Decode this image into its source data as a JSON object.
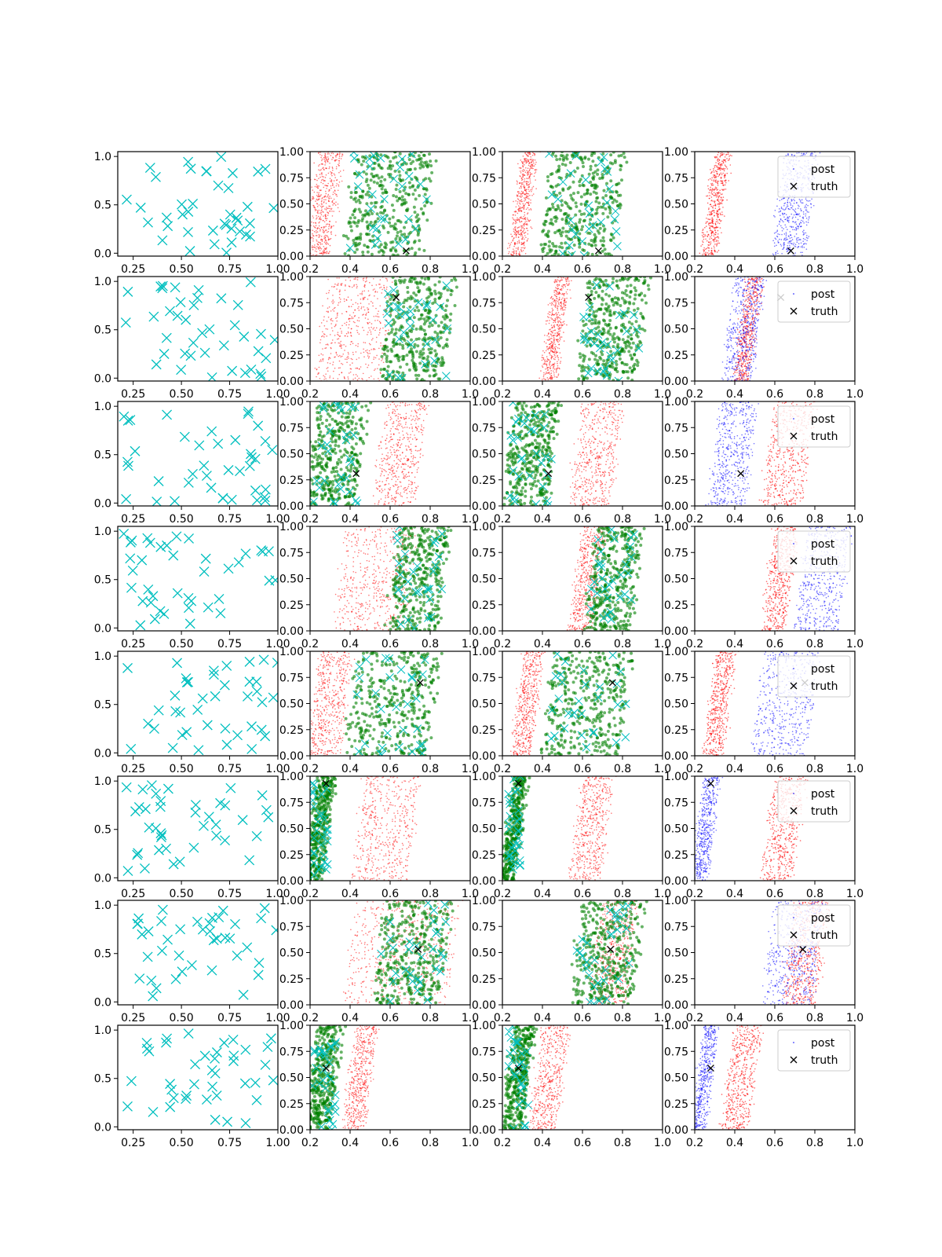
{
  "figure": {
    "rows": 8,
    "cols": 4
  },
  "colors": {
    "design": "#00BFBF",
    "green": "#008000",
    "red": "#FF0000",
    "blue": "#0000FF",
    "truth": "#000000"
  },
  "legend": {
    "post_label": "post",
    "truth_label": "truth"
  },
  "chart_data": [
    {
      "panel": "design-points",
      "type": "scatter",
      "marker": "x",
      "xlim": [
        0.17,
        1.0
      ],
      "ylim": [
        -0.03,
        1.05
      ],
      "xticks": [
        "0.25",
        "0.50",
        "0.75",
        "1.00"
      ],
      "yticks": [
        "0.0",
        "0.5",
        "1.0"
      ]
    },
    {
      "panel": "prior-samples-with-design",
      "type": "scatter",
      "series_colors": [
        "red",
        "green",
        "design"
      ],
      "xlim": [
        0.2,
        1.0
      ],
      "ylim": [
        0.0,
        1.0
      ],
      "xticks": [
        "0.2",
        "0.4",
        "0.6",
        "0.8",
        "1.0"
      ],
      "yticks": [
        "0.00",
        "0.25",
        "0.50",
        "0.75",
        "1.00"
      ]
    },
    {
      "panel": "samples-with-design",
      "type": "scatter",
      "series_colors": [
        "red",
        "green",
        "design"
      ],
      "xlim": [
        0.2,
        1.0
      ],
      "ylim": [
        0.0,
        1.0
      ],
      "xticks": [
        "0.2",
        "0.4",
        "0.6",
        "0.8",
        "1.0"
      ],
      "yticks": [
        "0.00",
        "0.25",
        "0.50",
        "0.75",
        "1.00"
      ]
    },
    {
      "panel": "posterior",
      "type": "scatter",
      "series": [
        {
          "name": "post"
        },
        {
          "name": "truth"
        }
      ],
      "legend_position": "top-right",
      "xlim": [
        0.2,
        1.0
      ],
      "ylim": [
        0.0,
        1.0
      ],
      "xticks": [
        "0.2",
        "0.4",
        "0.6",
        "0.8",
        "1.0"
      ],
      "yticks": [
        "0.00",
        "0.25",
        "0.50",
        "0.75",
        "1.00"
      ]
    }
  ],
  "row_data": [
    {
      "truth": [
        0.68,
        0.05
      ],
      "red_band": [
        0.21,
        0.33
      ],
      "green_band": [
        0.4,
        0.79
      ],
      "blue_band": [
        0.62,
        0.78
      ],
      "red_post_band": [
        0.27,
        0.34
      ],
      "blue_is_right": true,
      "legend": true
    },
    {
      "truth": [
        0.63,
        0.8
      ],
      "red_band": [
        0.26,
        0.59
      ],
      "green_band": [
        0.58,
        0.9
      ],
      "blue_band": [
        0.37,
        0.52
      ],
      "red_post_band": [
        0.43,
        0.5
      ],
      "blue_is_right": false,
      "legend": true
    },
    {
      "truth": [
        0.43,
        0.31
      ],
      "red_band": [
        0.55,
        0.75
      ],
      "green_band": [
        0.21,
        0.46
      ],
      "blue_band": [
        0.3,
        0.48
      ],
      "red_post_band": [
        0.57,
        0.77
      ],
      "blue_is_right": false,
      "legend": true
    },
    {
      "truth": null,
      "red_band": [
        0.35,
        0.7
      ],
      "green_band": [
        0.62,
        0.87
      ],
      "blue_band": [
        0.73,
        0.95
      ],
      "red_post_band": [
        0.57,
        0.68
      ],
      "blue_is_right": true,
      "legend": true
    },
    {
      "truth": [
        0.75,
        0.7
      ],
      "red_band": [
        0.22,
        0.38
      ],
      "green_band": [
        0.4,
        0.82
      ],
      "blue_band": [
        0.52,
        0.79
      ],
      "red_post_band": [
        0.28,
        0.37
      ],
      "blue_is_right": true,
      "legend": true
    },
    {
      "truth": [
        0.28,
        0.93
      ],
      "red_band": [
        0.44,
        0.72
      ],
      "green_band": [
        0.21,
        0.29
      ],
      "blue_band": [
        0.22,
        0.29
      ],
      "red_post_band": [
        0.57,
        0.72
      ],
      "blue_is_right": false,
      "legend": true
    },
    {
      "truth": [
        0.74,
        0.53
      ],
      "red_band": [
        0.4,
        0.92
      ],
      "green_band": [
        0.55,
        0.88
      ],
      "blue_band": [
        0.57,
        0.82
      ],
      "red_post_band": [
        0.67,
        0.84
      ],
      "blue_is_right": false,
      "legend": true
    },
    {
      "truth": [
        0.28,
        0.59
      ],
      "red_band": [
        0.4,
        0.5
      ],
      "green_band": [
        0.21,
        0.33
      ],
      "blue_band": [
        0.22,
        0.28
      ],
      "red_post_band": [
        0.37,
        0.5
      ],
      "blue_is_right": false,
      "legend": true
    }
  ]
}
